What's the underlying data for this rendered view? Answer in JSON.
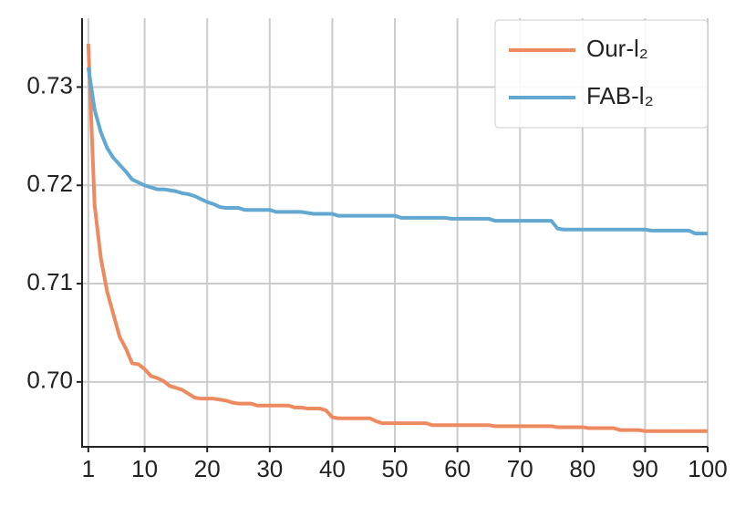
{
  "chart_data": {
    "type": "line",
    "x": [
      1,
      2,
      3,
      4,
      5,
      6,
      7,
      8,
      9,
      10,
      11,
      12,
      13,
      14,
      15,
      16,
      17,
      18,
      19,
      20,
      21,
      22,
      23,
      24,
      25,
      26,
      27,
      28,
      29,
      30,
      31,
      32,
      33,
      34,
      35,
      36,
      37,
      38,
      39,
      40,
      41,
      42,
      43,
      44,
      45,
      46,
      47,
      48,
      49,
      50,
      51,
      52,
      53,
      54,
      55,
      56,
      57,
      58,
      59,
      60,
      61,
      62,
      63,
      64,
      65,
      66,
      67,
      68,
      69,
      70,
      71,
      72,
      73,
      74,
      75,
      76,
      77,
      78,
      79,
      80,
      81,
      82,
      83,
      84,
      85,
      86,
      87,
      88,
      89,
      90,
      91,
      92,
      93,
      94,
      95,
      96,
      97,
      98,
      99,
      100
    ],
    "series": [
      {
        "name": "Our-l₂",
        "color": "#ee8a60",
        "values": [
          0.7344,
          0.718,
          0.7126,
          0.7092,
          0.7069,
          0.7046,
          0.7034,
          0.7019,
          0.7018,
          0.7013,
          0.7006,
          0.7004,
          0.7001,
          0.6996,
          0.6994,
          0.6992,
          0.6988,
          0.6984,
          0.6983,
          0.6983,
          0.6983,
          0.6982,
          0.6981,
          0.6979,
          0.6978,
          0.6978,
          0.6978,
          0.6976,
          0.6976,
          0.6976,
          0.6976,
          0.6976,
          0.6976,
          0.6974,
          0.6974,
          0.6973,
          0.6973,
          0.6973,
          0.6971,
          0.6964,
          0.6963,
          0.6963,
          0.6963,
          0.6963,
          0.6963,
          0.6963,
          0.696,
          0.6958,
          0.6958,
          0.6958,
          0.6958,
          0.6958,
          0.6958,
          0.6958,
          0.6958,
          0.6956,
          0.6956,
          0.6956,
          0.6956,
          0.6956,
          0.6956,
          0.6956,
          0.6956,
          0.6956,
          0.6956,
          0.6955,
          0.6955,
          0.6955,
          0.6955,
          0.6955,
          0.6955,
          0.6955,
          0.6955,
          0.6955,
          0.6955,
          0.6954,
          0.6954,
          0.6954,
          0.6954,
          0.6954,
          0.6953,
          0.6953,
          0.6953,
          0.6953,
          0.6953,
          0.6951,
          0.6951,
          0.6951,
          0.6951,
          0.695,
          0.695,
          0.695,
          0.695,
          0.695,
          0.695,
          0.695,
          0.695,
          0.695,
          0.695,
          0.695
        ]
      },
      {
        "name": "FAB-l₂",
        "color": "#62a8d1",
        "values": [
          0.732,
          0.7277,
          0.7254,
          0.7238,
          0.7228,
          0.7221,
          0.7214,
          0.7206,
          0.7203,
          0.72,
          0.7198,
          0.7196,
          0.7196,
          0.7195,
          0.7194,
          0.7192,
          0.7191,
          0.7189,
          0.7186,
          0.7183,
          0.7181,
          0.7178,
          0.7177,
          0.7177,
          0.7177,
          0.7175,
          0.7175,
          0.7175,
          0.7175,
          0.7175,
          0.7173,
          0.7173,
          0.7173,
          0.7173,
          0.7173,
          0.7172,
          0.7171,
          0.7171,
          0.7171,
          0.7171,
          0.7169,
          0.7169,
          0.7169,
          0.7169,
          0.7169,
          0.7169,
          0.7169,
          0.7169,
          0.7169,
          0.7169,
          0.7167,
          0.7167,
          0.7167,
          0.7167,
          0.7167,
          0.7167,
          0.7167,
          0.7167,
          0.7166,
          0.7166,
          0.7166,
          0.7166,
          0.7166,
          0.7166,
          0.7166,
          0.7164,
          0.7164,
          0.7164,
          0.7164,
          0.7164,
          0.7164,
          0.7164,
          0.7164,
          0.7164,
          0.7164,
          0.7156,
          0.7155,
          0.7155,
          0.7155,
          0.7155,
          0.7155,
          0.7155,
          0.7155,
          0.7155,
          0.7155,
          0.7155,
          0.7155,
          0.7155,
          0.7155,
          0.7155,
          0.7154,
          0.7154,
          0.7154,
          0.7154,
          0.7154,
          0.7154,
          0.7154,
          0.7151,
          0.7151,
          0.7151
        ]
      }
    ],
    "xlim": [
      0,
      100
    ],
    "xticks": [
      1,
      10,
      20,
      30,
      40,
      50,
      60,
      70,
      80,
      90,
      100
    ],
    "ylim": [
      0.6934,
      0.737
    ],
    "yticks": [
      {
        "value": 0.7,
        "label": "0.70"
      },
      0.71,
      0.72,
      0.73
    ],
    "grid": true,
    "legend": "upper right"
  }
}
